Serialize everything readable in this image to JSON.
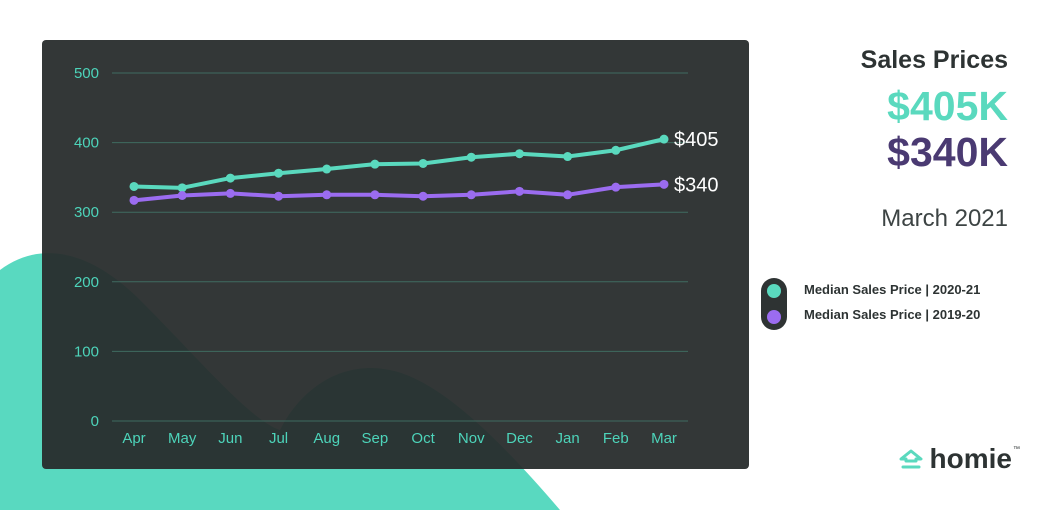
{
  "colors": {
    "series_2020_21": "#5ad9be",
    "series_2019_20": "#9b6cf0",
    "panel": "#2e3333",
    "grid": "#3f6b60",
    "accent": "#5ad9be",
    "value_2019": "#4a3a72"
  },
  "header": {
    "title": "Sales Prices",
    "value_2020_21": "$405K",
    "value_2019_20": "$340K",
    "date": "March 2021"
  },
  "legend": [
    {
      "label": "Median Sales Price  |  2020-21",
      "color": "#5ad9be"
    },
    {
      "label": "Median Sales Price  |  2019-20",
      "color": "#9b6cf0"
    }
  ],
  "logo": {
    "word": "homie",
    "tm": "™",
    "icon": "house-icon"
  },
  "chart_data": {
    "type": "line",
    "categories": [
      "Apr",
      "May",
      "Jun",
      "Jul",
      "Aug",
      "Sep",
      "Oct",
      "Nov",
      "Dec",
      "Jan",
      "Feb",
      "Mar"
    ],
    "ylim": [
      0,
      500
    ],
    "yticks": [
      0,
      100,
      200,
      300,
      400,
      500
    ],
    "grid": true,
    "series": [
      {
        "values": [
          337,
          335,
          349,
          356,
          362,
          369,
          370,
          379,
          384,
          380,
          389,
          405
        ],
        "end_label": "$405",
        "color": "#5ad9be"
      },
      {
        "values": [
          317,
          324,
          327,
          323,
          325,
          325,
          323,
          325,
          330,
          325,
          336,
          340
        ],
        "end_label": "$340",
        "color": "#9b6cf0"
      }
    ],
    "title": "",
    "xlabel": "",
    "ylabel": ""
  }
}
